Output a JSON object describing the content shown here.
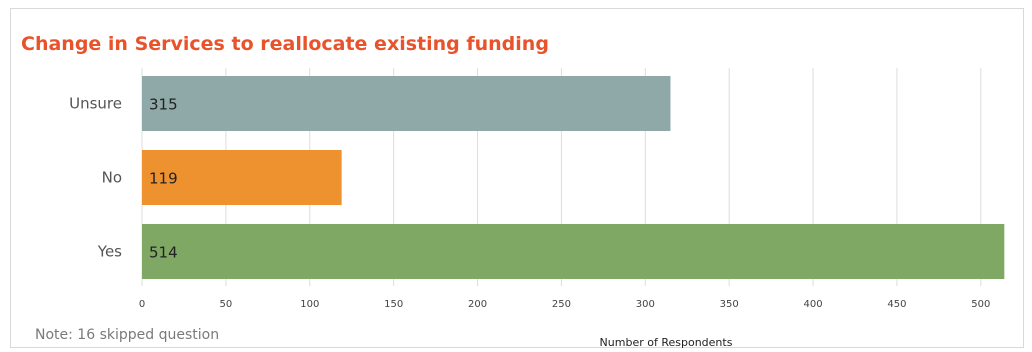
{
  "note": "Note: 16 skipped question",
  "chart_data": {
    "type": "bar",
    "orientation": "horizontal",
    "title": "Change in Services to reallocate existing funding",
    "categories": [
      "Unsure",
      "No",
      "Yes"
    ],
    "values": [
      315,
      119,
      514
    ],
    "colors": [
      "#8fa8a8",
      "#ee9230",
      "#7ea863"
    ],
    "xlabel": "Number of Respondents",
    "ylabel": "",
    "xlim": [
      0,
      515
    ],
    "xticks": [
      0,
      50,
      100,
      150,
      200,
      250,
      300,
      350,
      400,
      450,
      500
    ],
    "grid": "vertical",
    "gridColor": "#dddddd"
  }
}
